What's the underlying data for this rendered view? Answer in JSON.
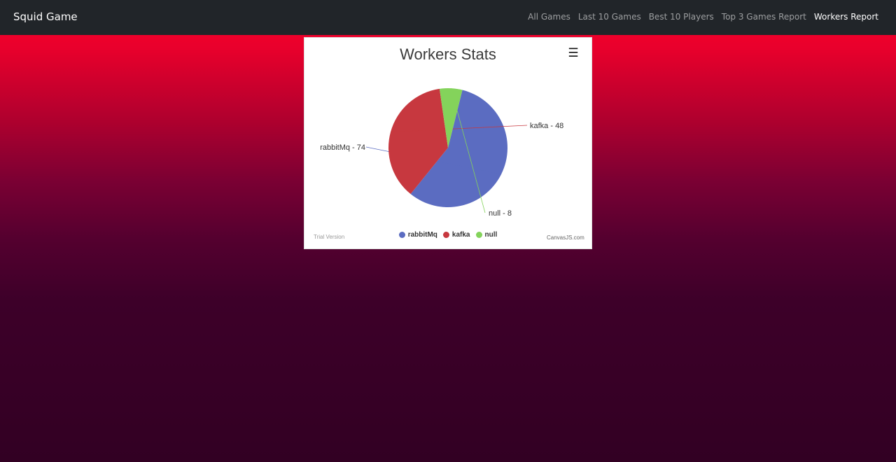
{
  "navbar": {
    "brand": "Squid Game",
    "links": [
      "All Games",
      "Last 10 Games",
      "Best 10 Players",
      "Top 3 Games Report",
      "Workers Report"
    ],
    "active_index": 4
  },
  "chart": {
    "menu_icon": "hamburger-menu-icon",
    "trial_text": "Trial Version",
    "credit_text": "CanvasJS.com"
  },
  "chart_data": {
    "type": "pie",
    "title": "Workers Stats",
    "categories": [
      "rabbitMq",
      "kafka",
      "null"
    ],
    "values": [
      74,
      48,
      8
    ],
    "index_labels": [
      "rabbitMq - 74",
      "kafka - 48",
      "null - 8"
    ],
    "colors": [
      "#5b6cc1",
      "#c7383f",
      "#84d35b"
    ],
    "legend_position": "bottom"
  }
}
